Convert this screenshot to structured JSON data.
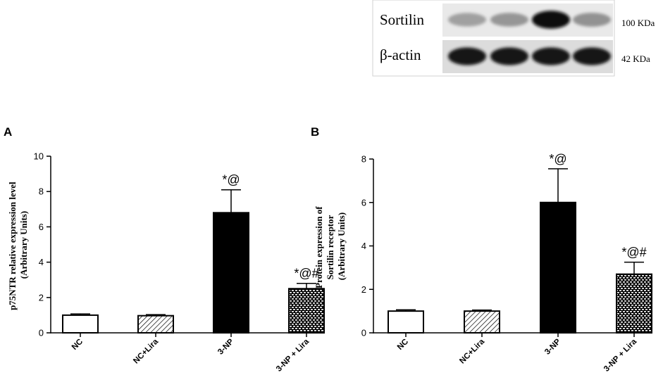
{
  "blot": {
    "rows": [
      {
        "label": "Sortilin",
        "size": "100 KDa",
        "intensities": [
          0.32,
          0.36,
          0.95,
          0.38
        ]
      },
      {
        "label": "β-actin",
        "size": "42 KDa",
        "intensities": [
          0.92,
          0.92,
          0.92,
          0.92
        ]
      }
    ]
  },
  "chart_data": [
    {
      "type": "bar",
      "panel": "A",
      "ylabel": "p75NTR relative expression level\n(Arbitrary Units)",
      "categories": [
        "NC",
        "NC+Lira",
        "3-NP",
        "3-NP + Lira"
      ],
      "values": [
        1.0,
        0.97,
        6.8,
        2.5
      ],
      "errors": [
        0.07,
        0.06,
        1.3,
        0.3
      ],
      "annotations": [
        "",
        "",
        "*@",
        "*@#"
      ],
      "fills": [
        "white",
        "hatch",
        "black",
        "brick"
      ],
      "ylim": [
        0,
        10
      ],
      "yticks": [
        0,
        2,
        4,
        6,
        8,
        10
      ]
    },
    {
      "type": "bar",
      "panel": "B",
      "ylabel": "Protein expression of\nSortilin receptor\n(Arbitrary Units)",
      "categories": [
        "NC",
        "NC+Lira",
        "3-NP",
        "3-NP + Lira"
      ],
      "values": [
        1.0,
        1.0,
        6.0,
        2.7
      ],
      "errors": [
        0.06,
        0.05,
        1.55,
        0.55
      ],
      "annotations": [
        "",
        "",
        "*@",
        "*@#"
      ],
      "fills": [
        "white",
        "hatch",
        "black",
        "brick"
      ],
      "ylim": [
        0,
        8
      ],
      "yticks": [
        0,
        2,
        4,
        6,
        8
      ]
    }
  ]
}
